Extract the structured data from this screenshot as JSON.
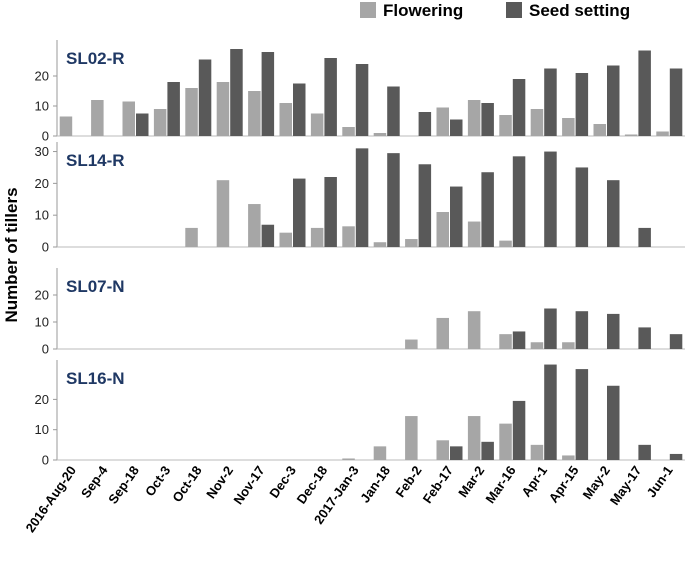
{
  "chart_data": {
    "type": "bar",
    "ylabel": "Number of tillers",
    "categories": [
      "2016-Aug-20",
      "Sep-4",
      "Sep-18",
      "Oct-3",
      "Oct-18",
      "Nov-2",
      "Nov-17",
      "Dec-3",
      "Dec-18",
      "2017-Jan-3",
      "Jan-18",
      "Feb-2",
      "Feb-17",
      "Mar-2",
      "Mar-16",
      "Apr-1",
      "Apr-15",
      "May-2",
      "May-17",
      "Jun-1"
    ],
    "legend": [
      {
        "name": "Flowering",
        "color": "#a6a6a6"
      },
      {
        "name": "Seed setting",
        "color": "#595959"
      }
    ],
    "panels": [
      {
        "name": "SL02-R",
        "ylim": [
          0,
          32
        ],
        "yticks": [
          "0",
          "10",
          "20"
        ],
        "ytick_values": [
          0,
          10,
          20
        ],
        "series": [
          {
            "name": "Flowering",
            "values": [
              6.5,
              12,
              11.5,
              9,
              16,
              18,
              15,
              11,
              7.5,
              3,
              1,
              0,
              9.5,
              12,
              7,
              9,
              6,
              4,
              0.5,
              1.5
            ]
          },
          {
            "name": "Seed setting",
            "values": [
              0,
              0,
              7.5,
              18,
              25.5,
              29,
              28,
              17.5,
              26,
              24,
              16.5,
              8,
              5.5,
              11,
              19,
              22.5,
              21,
              23.5,
              28.5,
              22.5
            ]
          }
        ]
      },
      {
        "name": "SL14-R",
        "ylim": [
          0,
          33
        ],
        "yticks": [
          "0",
          "10",
          "20",
          "30"
        ],
        "ytick_values": [
          0,
          10,
          20,
          30
        ],
        "series": [
          {
            "name": "Flowering",
            "values": [
              0,
              0,
              0,
              0,
              6,
              21,
              13.5,
              4.5,
              6,
              6.5,
              1.5,
              2.5,
              11,
              8,
              2,
              0,
              0,
              0,
              0,
              0
            ]
          },
          {
            "name": "Seed setting",
            "values": [
              0,
              0,
              0,
              0,
              0,
              0,
              7,
              21.5,
              22,
              31,
              29.5,
              26,
              19,
              23.5,
              28.5,
              30,
              25,
              21,
              6,
              0
            ]
          }
        ]
      },
      {
        "name": "SL07-N",
        "ylim": [
          0,
          30
        ],
        "yticks": [
          "0",
          "10",
          "20"
        ],
        "ytick_values": [
          0,
          10,
          20
        ],
        "series": [
          {
            "name": "Flowering",
            "values": [
              0,
              0,
              0,
              0,
              0,
              0,
              0,
              0,
              0,
              0,
              0,
              3.5,
              11.5,
              14,
              5.5,
              2.5,
              2.5,
              0,
              0,
              0
            ]
          },
          {
            "name": "Seed setting",
            "values": [
              0,
              0,
              0,
              0,
              0,
              0,
              0,
              0,
              0,
              0,
              0,
              0,
              0,
              0,
              6.5,
              15,
              14,
              13,
              8,
              5.5
            ]
          }
        ]
      },
      {
        "name": "SL16-N",
        "ylim": [
          0,
          33
        ],
        "yticks": [
          "0",
          "10",
          "20"
        ],
        "ytick_values": [
          0,
          10,
          20
        ],
        "series": [
          {
            "name": "Flowering",
            "values": [
              0,
              0,
              0,
              0,
              0,
              0,
              0,
              0,
              0,
              0.5,
              4.5,
              14.5,
              6.5,
              14.5,
              12,
              5,
              1.5,
              0,
              0,
              0
            ]
          },
          {
            "name": "Seed setting",
            "values": [
              0,
              0,
              0,
              0,
              0,
              0,
              0,
              0,
              0,
              0,
              0,
              0,
              4.5,
              6,
              19.5,
              31.5,
              30,
              24.5,
              5,
              2
            ]
          }
        ]
      }
    ]
  }
}
